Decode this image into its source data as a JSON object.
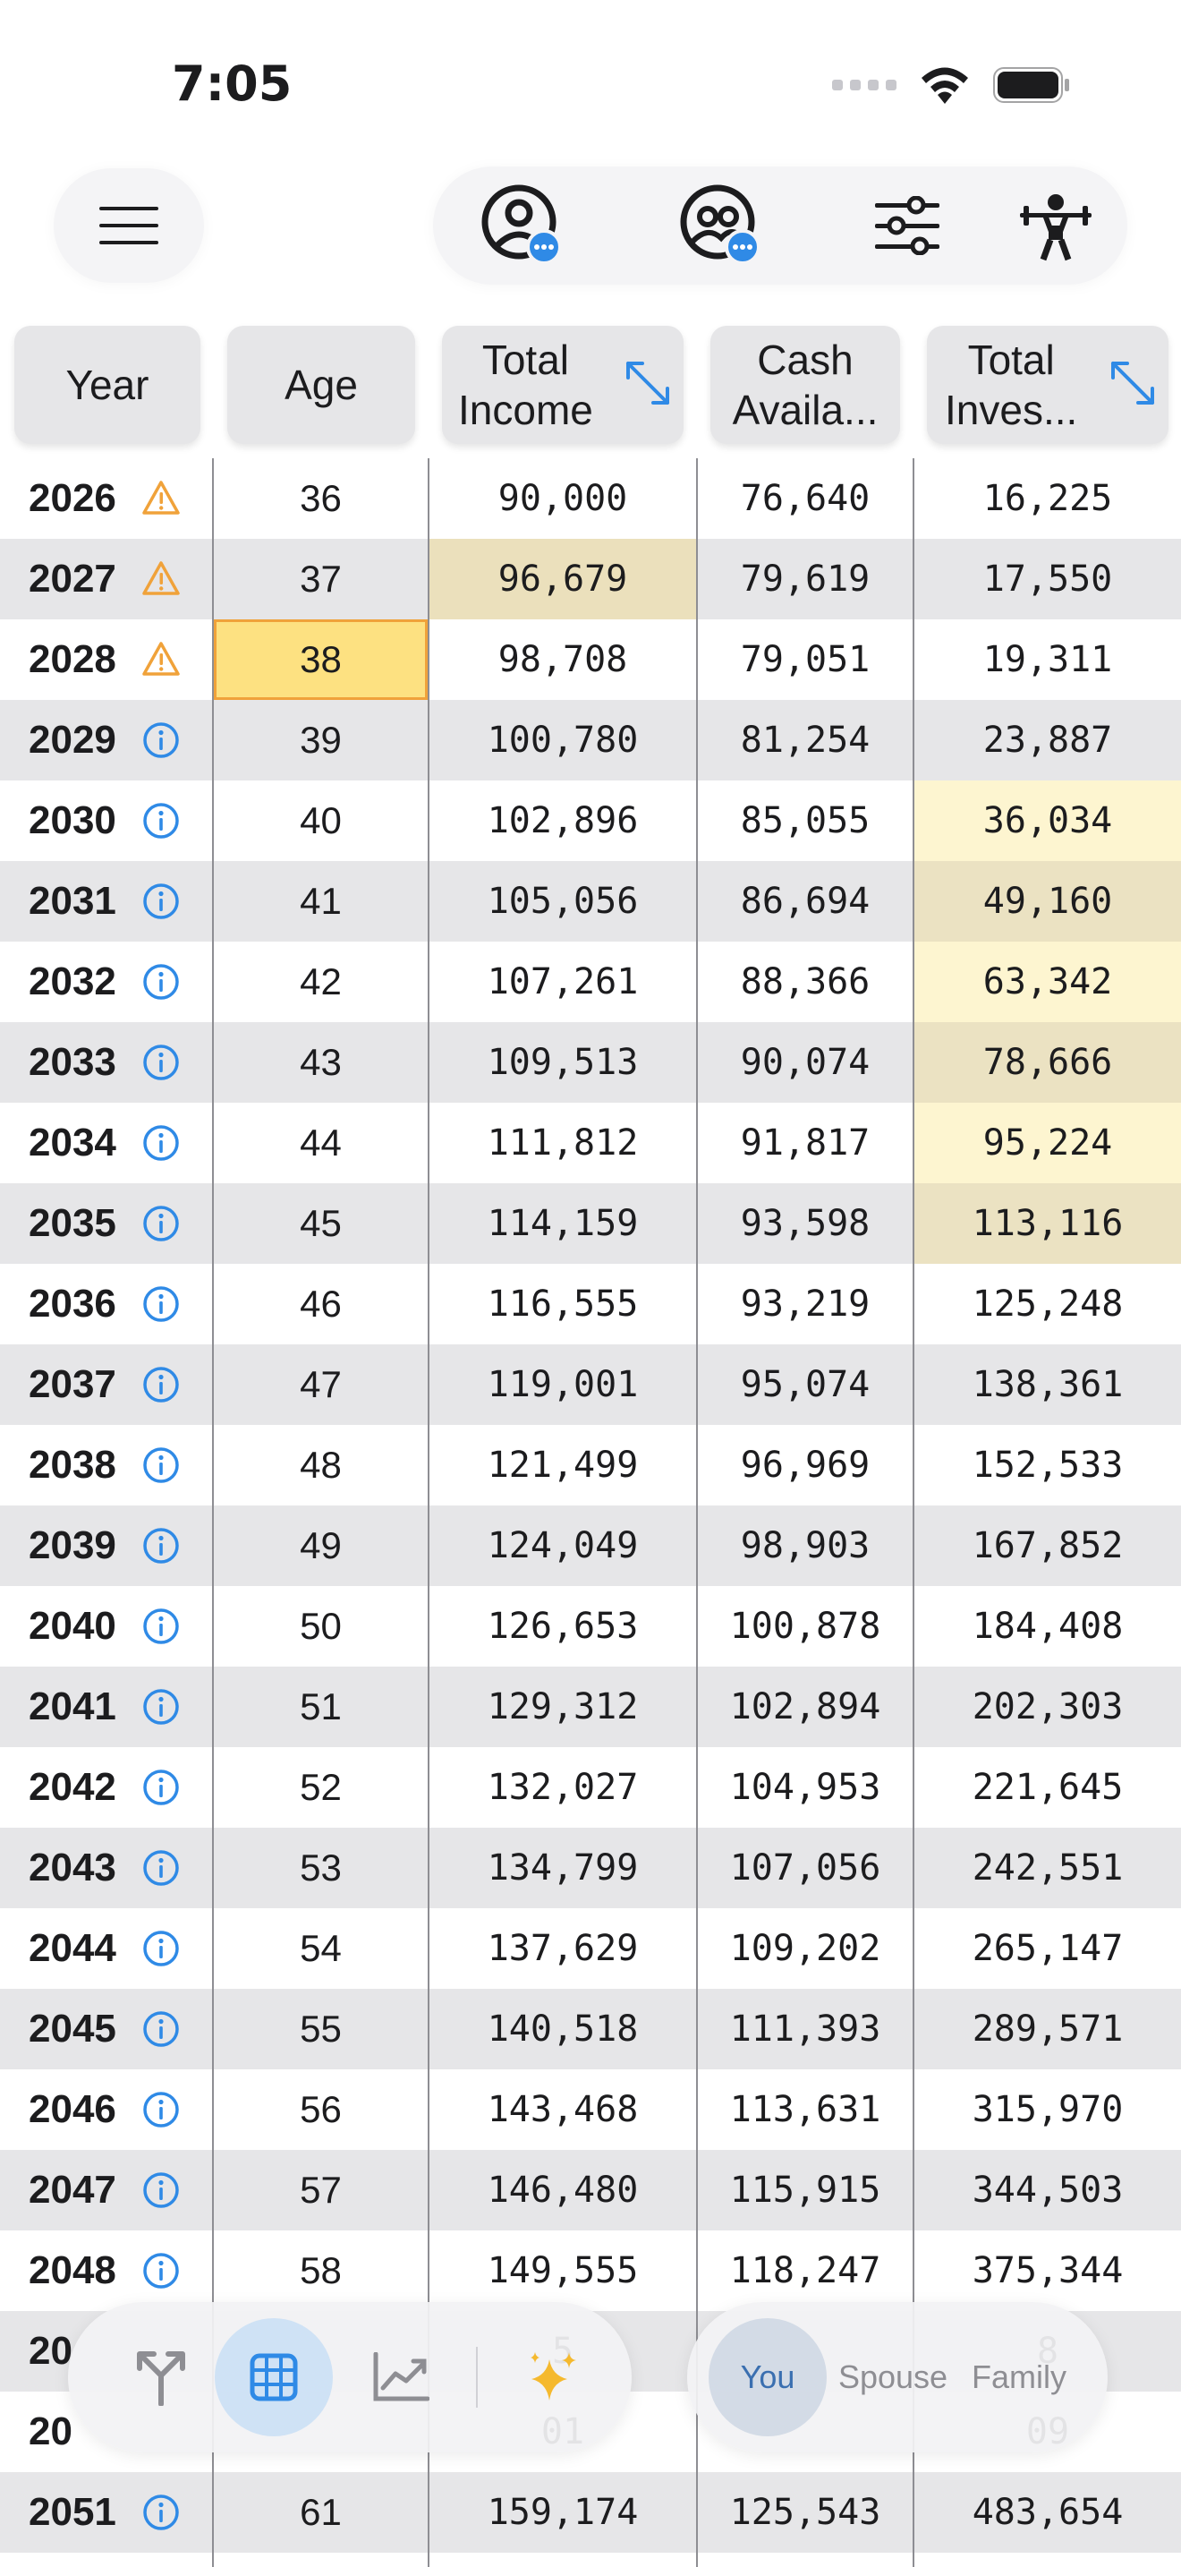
{
  "status_bar": {
    "time": "7:05"
  },
  "top_bar": {
    "menu_icon": "hamburger-menu-icon",
    "buttons": [
      {
        "name": "person-profile-button",
        "icon": "person-badge-icon"
      },
      {
        "name": "couple-profile-button",
        "icon": "two-people-badge-icon"
      },
      {
        "name": "settings-sliders-button",
        "icon": "sliders-icon"
      },
      {
        "name": "strength-button",
        "icon": "weightlifter-icon"
      }
    ]
  },
  "table": {
    "headers": {
      "year": "Year",
      "age": "Age",
      "total_income_1": "Total",
      "total_income_2": "Income",
      "cash_available_1": "Cash",
      "cash_available_2": "Availa...",
      "total_invest_1": "Total",
      "total_invest_2": "Inves..."
    },
    "rows": [
      {
        "year": "2026",
        "status": "warning",
        "age": "36",
        "income": "90,000",
        "cash": "76,640",
        "invest": "16,225"
      },
      {
        "year": "2027",
        "status": "warning",
        "age": "37",
        "income": "96,679",
        "cash": "79,619",
        "invest": "17,550"
      },
      {
        "year": "2028",
        "status": "warning",
        "age": "38",
        "income": "98,708",
        "cash": "79,051",
        "invest": "19,311"
      },
      {
        "year": "2029",
        "status": "info",
        "age": "39",
        "income": "100,780",
        "cash": "81,254",
        "invest": "23,887"
      },
      {
        "year": "2030",
        "status": "info",
        "age": "40",
        "income": "102,896",
        "cash": "85,055",
        "invest": "36,034"
      },
      {
        "year": "2031",
        "status": "info",
        "age": "41",
        "income": "105,056",
        "cash": "86,694",
        "invest": "49,160"
      },
      {
        "year": "2032",
        "status": "info",
        "age": "42",
        "income": "107,261",
        "cash": "88,366",
        "invest": "63,342"
      },
      {
        "year": "2033",
        "status": "info",
        "age": "43",
        "income": "109,513",
        "cash": "90,074",
        "invest": "78,666"
      },
      {
        "year": "2034",
        "status": "info",
        "age": "44",
        "income": "111,812",
        "cash": "91,817",
        "invest": "95,224"
      },
      {
        "year": "2035",
        "status": "info",
        "age": "45",
        "income": "114,159",
        "cash": "93,598",
        "invest": "113,116"
      },
      {
        "year": "2036",
        "status": "info",
        "age": "46",
        "income": "116,555",
        "cash": "93,219",
        "invest": "125,248"
      },
      {
        "year": "2037",
        "status": "info",
        "age": "47",
        "income": "119,001",
        "cash": "95,074",
        "invest": "138,361"
      },
      {
        "year": "2038",
        "status": "info",
        "age": "48",
        "income": "121,499",
        "cash": "96,969",
        "invest": "152,533"
      },
      {
        "year": "2039",
        "status": "info",
        "age": "49",
        "income": "124,049",
        "cash": "98,903",
        "invest": "167,852"
      },
      {
        "year": "2040",
        "status": "info",
        "age": "50",
        "income": "126,653",
        "cash": "100,878",
        "invest": "184,408"
      },
      {
        "year": "2041",
        "status": "info",
        "age": "51",
        "income": "129,312",
        "cash": "102,894",
        "invest": "202,303"
      },
      {
        "year": "2042",
        "status": "info",
        "age": "52",
        "income": "132,027",
        "cash": "104,953",
        "invest": "221,645"
      },
      {
        "year": "2043",
        "status": "info",
        "age": "53",
        "income": "134,799",
        "cash": "107,056",
        "invest": "242,551"
      },
      {
        "year": "2044",
        "status": "info",
        "age": "54",
        "income": "137,629",
        "cash": "109,202",
        "invest": "265,147"
      },
      {
        "year": "2045",
        "status": "info",
        "age": "55",
        "income": "140,518",
        "cash": "111,393",
        "invest": "289,571"
      },
      {
        "year": "2046",
        "status": "info",
        "age": "56",
        "income": "143,468",
        "cash": "113,631",
        "invest": "315,970"
      },
      {
        "year": "2047",
        "status": "info",
        "age": "57",
        "income": "146,480",
        "cash": "115,915",
        "invest": "344,503"
      },
      {
        "year": "2048",
        "status": "info",
        "age": "58",
        "income": "149,555",
        "cash": "118,247",
        "invest": "375,344"
      },
      {
        "year": "20",
        "status": "none",
        "age": "",
        "income": "5",
        "cash": "",
        "invest": "8"
      },
      {
        "year": "20",
        "status": "none",
        "age": "",
        "income": "01",
        "cash": "",
        "invest": "09"
      },
      {
        "year": "2051",
        "status": "info",
        "age": "61",
        "income": "159,174",
        "cash": "125,543",
        "invest": "483,654"
      }
    ]
  },
  "bottom_bar": {
    "left_buttons": [
      {
        "name": "scenario-branch-button",
        "icon": "branch-icon",
        "active": false
      },
      {
        "name": "table-view-button",
        "icon": "grid-table-icon",
        "active": true
      },
      {
        "name": "chart-view-button",
        "icon": "line-chart-icon",
        "active": false
      },
      {
        "name": "ai-sparkle-button",
        "icon": "sparkles-icon",
        "active": false
      }
    ],
    "segments": {
      "you": "You",
      "spouse": "Spouse",
      "family": "Family"
    }
  },
  "colors": {
    "accent_blue": "#2f8ae6",
    "warning_orange": "#f0a23a",
    "row_alt": "#e6e6e8",
    "highlight_yellow": "#fde181"
  }
}
